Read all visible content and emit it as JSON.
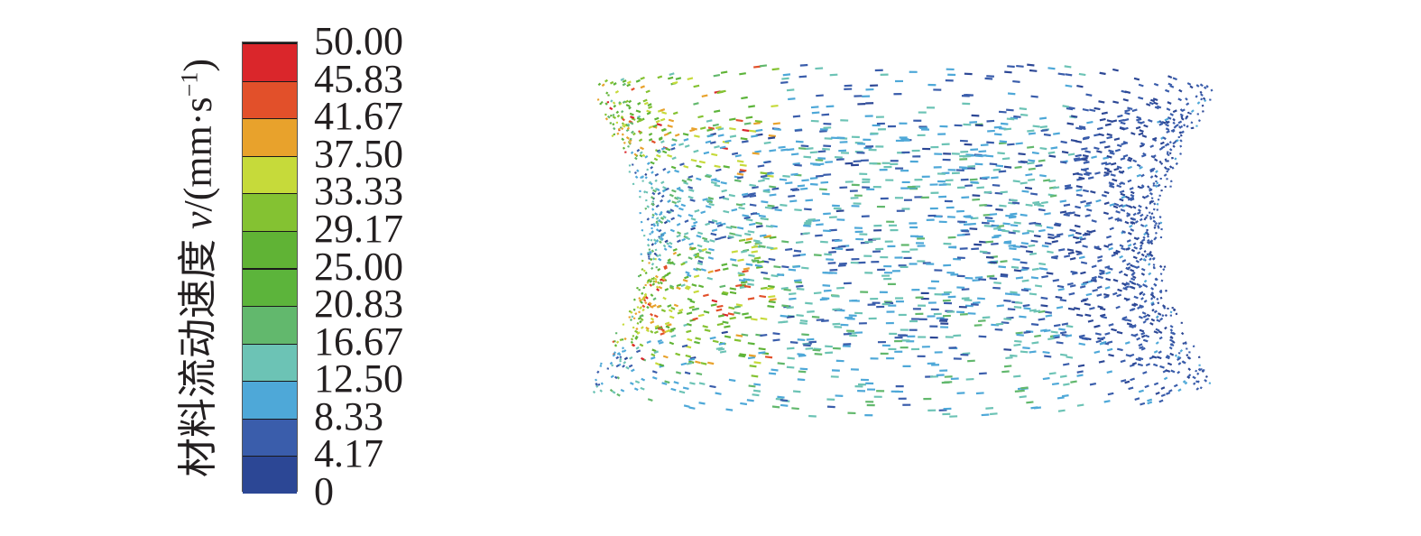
{
  "chart_data": {
    "type": "vector-field",
    "colorbar": {
      "title_text": "材料流动速度 ",
      "title_var": "v",
      "title_unit": "/(mm·s",
      "title_exp": "−1",
      "title_close": ")",
      "ticks": [
        "50.00",
        "45.83",
        "41.67",
        "37.50",
        "33.33",
        "29.17",
        "25.00",
        "20.83",
        "16.67",
        "12.50",
        "8.33",
        "4.17",
        "0"
      ],
      "range": [
        0,
        50
      ],
      "colors": [
        "#2c4795",
        "#3a5dab",
        "#4ea8d8",
        "#6cc3b5",
        "#62b86d",
        "#5cb43b",
        "#60b335",
        "#84c232",
        "#c6da3a",
        "#e8a22c",
        "#e2502a",
        "#da262b"
      ]
    }
  }
}
